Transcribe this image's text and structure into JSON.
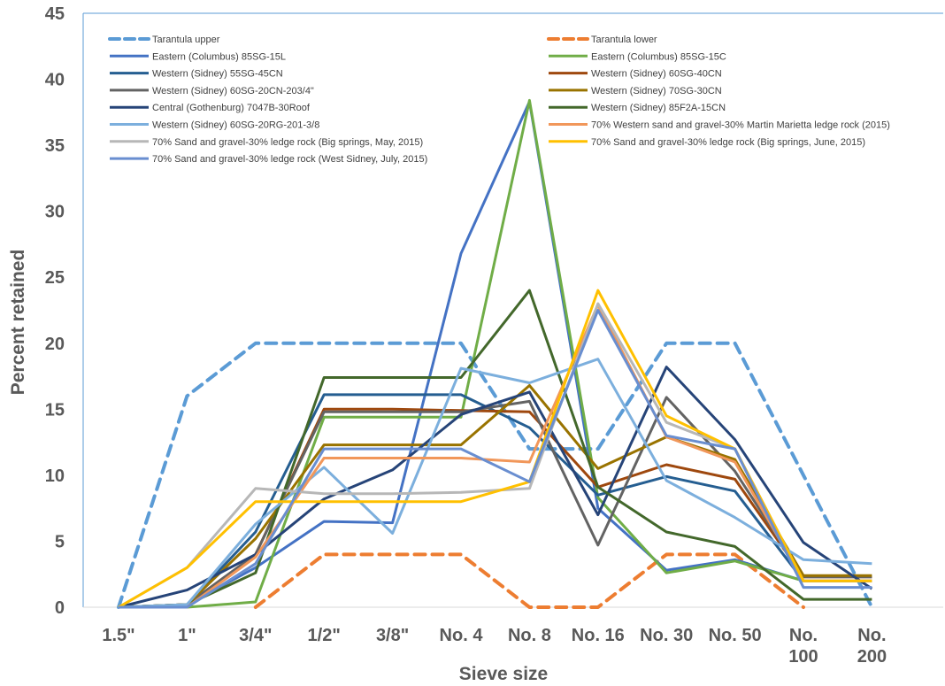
{
  "chart_data": {
    "type": "line",
    "title": "",
    "xlabel": "Sieve size",
    "ylabel": "Percent retained",
    "ylim": [
      0,
      45
    ],
    "yticks": [
      "0",
      "5",
      "10",
      "15",
      "20",
      "25",
      "30",
      "35",
      "40",
      "45"
    ],
    "categories": [
      "1.5\"",
      "1\"",
      "3/4\"",
      "1/2\"",
      "3/8\"",
      "No. 4",
      "No. 8",
      "No. 16",
      "No. 30",
      "No. 50",
      "No. 100",
      "No. 200"
    ],
    "grid": false,
    "legend_position": "top",
    "series": [
      {
        "name": "Tarantula upper",
        "color": "#5b9bd5",
        "dash": true,
        "values": [
          0,
          16,
          20,
          20,
          20,
          20,
          12,
          12,
          20,
          20,
          10,
          0
        ]
      },
      {
        "name": "Tarantula lower",
        "color": "#ed7d31",
        "dash": true,
        "values": [
          null,
          null,
          0,
          4,
          4,
          4,
          0,
          0,
          4,
          4,
          0,
          null
        ]
      },
      {
        "name": "Eastern (Columbus) 85SG-15L",
        "color": "#4472c4",
        "dash": false,
        "values": [
          0,
          0.2,
          3,
          6.5,
          6.4,
          26.8,
          38.3,
          7.5,
          2.8,
          3.6,
          2,
          2
        ]
      },
      {
        "name": "Eastern (Columbus) 85SG-15C",
        "color": "#70ad47",
        "dash": false,
        "values": [
          0,
          0,
          0.4,
          14.4,
          14.4,
          14.4,
          38.4,
          8.3,
          2.6,
          3.5,
          2,
          2
        ]
      },
      {
        "name": "Western (Sidney) 55SG-45CN",
        "color": "#255e91",
        "dash": false,
        "values": [
          0,
          0.2,
          5.7,
          16.1,
          16.1,
          16.1,
          13.6,
          8.5,
          9.9,
          8.8,
          2,
          2
        ]
      },
      {
        "name": "Western (Sidney) 60SG-40CN",
        "color": "#9e480e",
        "dash": false,
        "values": [
          0,
          0.2,
          4,
          15,
          15,
          14.9,
          14.8,
          9.1,
          10.8,
          9.7,
          2.3,
          2.3
        ]
      },
      {
        "name": "Western (Sidney) 60SG-20CN-203/4\"",
        "color": "#636363",
        "dash": false,
        "values": [
          0,
          0.2,
          4,
          14.8,
          14.8,
          14.8,
          15.6,
          4.7,
          15.9,
          10.3,
          2.3,
          2.3
        ]
      },
      {
        "name": "Western (Sidney) 70SG-30CN",
        "color": "#997300",
        "dash": false,
        "values": [
          0,
          0.2,
          5.2,
          12.3,
          12.3,
          12.3,
          16.8,
          10.5,
          12.9,
          11.2,
          2.4,
          2.4
        ]
      },
      {
        "name": "Central (Gothenburg) 7047B-30Roof",
        "color": "#264478",
        "dash": false,
        "values": [
          0,
          1.3,
          4,
          8.2,
          10.4,
          14.6,
          16.3,
          7,
          18.2,
          12.7,
          4.9,
          1.4
        ]
      },
      {
        "name": "Western (Sidney) 85F2A-15CN",
        "color": "#43682b",
        "dash": false,
        "values": [
          0,
          0.2,
          2.6,
          17.4,
          17.4,
          17.4,
          24,
          9.1,
          5.7,
          4.6,
          0.6,
          0.6
        ]
      },
      {
        "name": "Western (Sidney) 60SG-20RG-201-3/8",
        "color": "#7cafdd",
        "dash": false,
        "values": [
          0,
          0.2,
          6.3,
          10.6,
          5.6,
          18.1,
          17,
          18.8,
          9.6,
          6.8,
          3.6,
          3.3
        ]
      },
      {
        "name": "70% Western sand and gravel-30% Martin Marietta ledge rock (2015)",
        "color": "#f1975a",
        "dash": false,
        "values": [
          0,
          0,
          3.8,
          11.3,
          11.3,
          11.3,
          11,
          22.9,
          12.9,
          11,
          2,
          2
        ]
      },
      {
        "name": "70% Sand and gravel-30% ledge rock (Big springs, May, 2015)",
        "color": "#b7b7b7",
        "dash": false,
        "values": [
          0,
          3,
          9,
          8.6,
          8.6,
          8.7,
          9,
          23,
          14,
          12,
          2,
          2
        ]
      },
      {
        "name": "70% Sand and gravel-30% ledge rock (Big springs, June, 2015)",
        "color": "#ffc000",
        "dash": false,
        "values": [
          0,
          3,
          8,
          8,
          8,
          8,
          9.5,
          24,
          14.5,
          12,
          2,
          2
        ]
      },
      {
        "name": "70% Sand and gravel-30% ledge rock (West Sidney, July, 2015)",
        "color": "#698ed0",
        "dash": false,
        "values": [
          0,
          0,
          3.3,
          12,
          12,
          12,
          9.5,
          22.5,
          13,
          12,
          1.5,
          1.5
        ]
      }
    ]
  }
}
